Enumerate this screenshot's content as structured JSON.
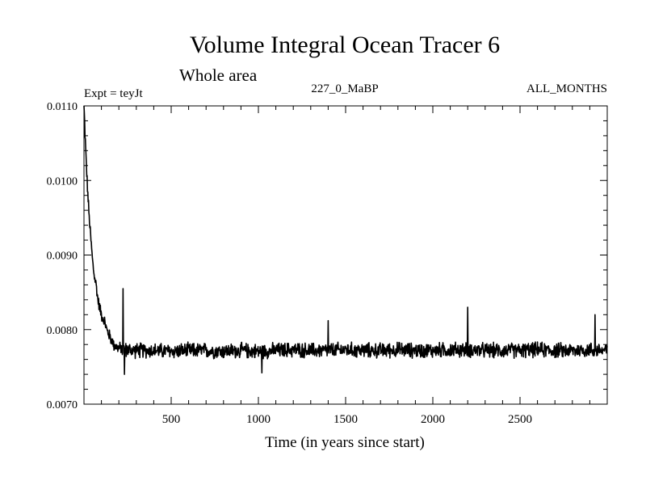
{
  "chart_data": {
    "type": "line",
    "title": "Volume Integral Ocean Tracer 6",
    "subtitle": "Whole area",
    "annotations": {
      "left": "Expt = teyJt",
      "center": "227_0_MaBP",
      "right": "ALL_MONTHS"
    },
    "xlabel": "Time (in years since start)",
    "ylabel": "",
    "xlim": [
      0,
      3000
    ],
    "ylim": [
      0.007,
      0.011
    ],
    "x_ticks": [
      500,
      1000,
      1500,
      2000,
      2500
    ],
    "x_tick_labels": [
      "500",
      "1000",
      "1500",
      "2000",
      "2500"
    ],
    "y_ticks": [
      0.007,
      0.008,
      0.009,
      0.01,
      0.011
    ],
    "y_tick_labels": [
      "0.0070",
      "0.0080",
      "0.0090",
      "0.0100",
      "0.0110"
    ],
    "grid": false,
    "series": [
      {
        "name": "Volume Integral Ocean Tracer 6",
        "color": "#000000",
        "x": [
          0,
          5,
          10,
          20,
          30,
          40,
          50,
          60,
          70,
          80,
          90,
          100,
          110,
          120,
          130,
          140,
          150,
          160,
          170,
          180,
          190,
          200,
          210,
          220,
          230,
          240,
          250,
          300,
          400,
          500,
          600,
          700,
          800,
          900,
          1000,
          1100,
          1200,
          1300,
          1400,
          1500,
          1600,
          1700,
          1800,
          1900,
          2000,
          2100,
          2200,
          2300,
          2400,
          2500,
          2600,
          2700,
          2800,
          2900,
          3000
        ],
        "y": [
          0.011,
          0.0107,
          0.0104,
          0.0099,
          0.0095,
          0.0092,
          0.0089,
          0.0087,
          0.0086,
          0.0084,
          0.0083,
          0.0082,
          0.00815,
          0.0081,
          0.008,
          0.00795,
          0.0079,
          0.00785,
          0.0078,
          0.00778,
          0.00776,
          0.00775,
          0.00775,
          0.00774,
          0.00774,
          0.00773,
          0.00773,
          0.00772,
          0.00772,
          0.00771,
          0.00772,
          0.00772,
          0.00771,
          0.00772,
          0.00771,
          0.00772,
          0.00773,
          0.00772,
          0.00772,
          0.00773,
          0.00772,
          0.00772,
          0.00773,
          0.00772,
          0.00772,
          0.00773,
          0.00773,
          0.00772,
          0.00772,
          0.00772,
          0.00773,
          0.00772,
          0.00772,
          0.00773,
          0.00772
        ],
        "noise_amplitude": 0.00012,
        "spikes": [
          {
            "x": 224,
            "y": 0.00855
          },
          {
            "x": 2200,
            "y": 0.0083
          },
          {
            "x": 2930,
            "y": 0.0082
          },
          {
            "x": 1400,
            "y": 0.00812
          },
          {
            "x": 232,
            "y": 0.0074
          },
          {
            "x": 1020,
            "y": 0.00742
          }
        ]
      }
    ]
  }
}
